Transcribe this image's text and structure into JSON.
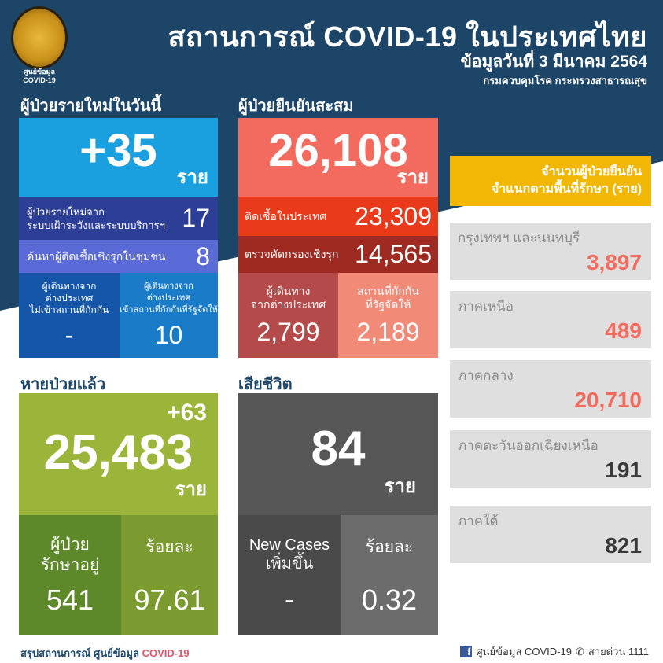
{
  "header": {
    "title": "สถานการณ์ COVID-19 ในประเทศไทย",
    "date": "ข้อมูลวันที่ 3 มีนาคม 2564",
    "department": "กรมควบคุมโรค กระทรวงสาธารณสุข",
    "logo_caption_1": "ศูนย์ข้อมูล",
    "logo_caption_2": "COVID-19"
  },
  "new_cases": {
    "title": "ผู้ป่วยรายใหม่ในวันนี้",
    "total": "+35",
    "unit": "ราย",
    "surveillance_label": "ผู้ป่วยรายใหม่จาก\nระบบเฝ้าระวังและระบบบริการฯ",
    "surveillance_value": "17",
    "community_label": "ค้นหาผู้ติดเชื้อเชิงรุกในชุมชน",
    "community_value": "8",
    "travel_no_quarantine_label": "ผู้เดินทางจาก\nต่างประเทศ\nไม่เข้าสถานที่กักกัน",
    "travel_no_quarantine_value": "-",
    "travel_quarantine_label": "ผู้เดินทางจาก\nต่างประเทศ\nเข้าสถานที่กักกันที่รัฐจัดให้",
    "travel_quarantine_value": "10"
  },
  "cumulative": {
    "title": "ผู้ป่วยยืนยันสะสม",
    "total": "26,108",
    "unit": "ราย",
    "domestic_label": "ติดเชื้อในประเทศ",
    "domestic_value": "23,309",
    "screening_label": "ตรวจคัดกรองเชิงรุก",
    "screening_value": "14,565",
    "travelers_label": "ผู้เดินทาง\nจากต่างประเทศ",
    "travelers_value": "2,799",
    "quarantine_label": "สถานที่กักกัน\nที่รัฐจัดให้",
    "quarantine_value": "2,189"
  },
  "recovered": {
    "title": "หายป่วยแล้ว",
    "delta": "+63",
    "total": "25,483",
    "unit": "ราย",
    "in_treatment_label": "ผู้ป่วย\nรักษาอยู่",
    "in_treatment_value": "541",
    "percent_label": "ร้อยละ",
    "percent_value": "97.61"
  },
  "deaths": {
    "title": "เสียชีวิต",
    "total": "84",
    "unit": "ราย",
    "new_label": "New Cases\nเพิ่มขึ้น",
    "new_value": "-",
    "percent_label": "ร้อยละ",
    "percent_value": "0.32"
  },
  "regions": {
    "title": "จำนวนผู้ป่วยยืนยัน\nจำแนกตามพื้นที่รักษา (ราย)",
    "items": [
      {
        "name": "กรุงเทพฯ และนนทบุรี",
        "value": "3,897",
        "color": "#f26b5e"
      },
      {
        "name": "ภาคเหนือ",
        "value": "489",
        "color": "#f26b5e"
      },
      {
        "name": "ภาคกลาง",
        "value": "20,710",
        "color": "#f26b5e"
      },
      {
        "name": "ภาคตะวันออกเฉียงเหนือ",
        "value": "191",
        "color": "#3a3a3a"
      },
      {
        "name": "ภาคใต้",
        "value": "821",
        "color": "#3a3a3a"
      }
    ]
  },
  "footer": {
    "summary": "สรุปสถานการณ์ ศูนย์ข้อมูล",
    "summary_accent": "COVID-19",
    "facebook": "ศูนย์ข้อมูล COVID-19",
    "hotline": "สายด่วน 1111"
  }
}
